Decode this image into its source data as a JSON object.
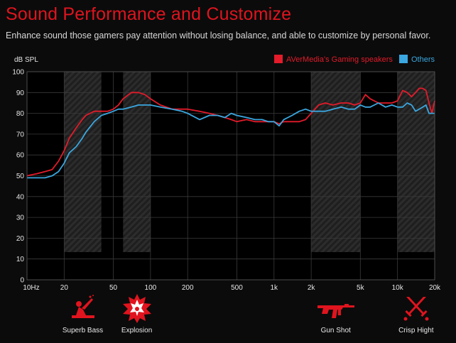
{
  "header": {
    "title": "Sound Performance and Customize",
    "subtitle": "Enhance sound those gamers pay attention without losing balance, and able to customize by personal favor."
  },
  "colors": {
    "accent": "#e0141e",
    "series_red": "#e31b2a",
    "series_blue": "#3aa7e0",
    "background": "#0b0b0b",
    "plot_background": "#000000"
  },
  "categories": [
    {
      "label": "Superb Bass",
      "icon": "soldier-mortar-icon",
      "range_hz": [
        20,
        40
      ]
    },
    {
      "label": "Explosion",
      "icon": "explosion-icon",
      "range_hz": [
        60,
        100
      ]
    },
    {
      "label": "Gun Shot",
      "icon": "rifle-icon",
      "range_hz": [
        2000,
        5000
      ]
    },
    {
      "label": "Crisp Hight",
      "icon": "crossed-swords-icon",
      "range_hz": [
        10000,
        20000
      ]
    }
  ],
  "chart_data": {
    "type": "line",
    "title": "",
    "xlabel": "",
    "ylabel": "dB SPL",
    "x_scale": "log",
    "xlim": [
      10,
      20000
    ],
    "ylim": [
      0,
      100
    ],
    "x_ticks": [
      10,
      20,
      50,
      100,
      200,
      500,
      1000,
      2000,
      5000,
      10000,
      20000
    ],
    "x_tick_labels": [
      "10Hz",
      "20",
      "50",
      "100",
      "200",
      "500",
      "1k",
      "2k",
      "5k",
      "10k",
      "20k"
    ],
    "y_ticks": [
      0,
      10,
      20,
      30,
      40,
      50,
      60,
      70,
      80,
      90,
      100
    ],
    "grid": true,
    "legend_position": "top-right",
    "series": [
      {
        "name": "AVerMedia's Gaming speakers",
        "color": "#e31b2a",
        "x": [
          10,
          12,
          14,
          16,
          18,
          20,
          22,
          25,
          28,
          30,
          35,
          40,
          45,
          50,
          55,
          60,
          70,
          80,
          90,
          100,
          120,
          150,
          180,
          200,
          250,
          300,
          350,
          400,
          450,
          500,
          600,
          700,
          800,
          900,
          1000,
          1100,
          1200,
          1400,
          1600,
          1800,
          2000,
          2300,
          2600,
          3000,
          3500,
          4000,
          4500,
          5000,
          5500,
          6000,
          7000,
          8000,
          9000,
          10000,
          11000,
          12000,
          13000,
          14000,
          15000,
          16000,
          17000,
          18000,
          19000,
          20000
        ],
        "y": [
          50,
          51,
          52,
          53,
          57,
          62,
          68,
          73,
          77,
          79,
          81,
          81,
          81,
          82,
          84,
          87,
          90,
          90,
          89,
          87,
          84,
          82,
          82,
          82,
          81,
          80,
          79,
          78,
          77,
          76,
          77,
          76,
          76,
          76,
          76,
          75,
          76,
          76,
          76,
          77,
          80,
          84,
          85,
          84,
          85,
          85,
          84,
          85,
          89,
          87,
          85,
          85,
          85,
          86,
          91,
          90,
          88,
          90,
          92,
          92,
          91,
          85,
          80,
          86
        ]
      },
      {
        "name": "Others",
        "color": "#3aa7e0",
        "x": [
          10,
          12,
          14,
          16,
          18,
          20,
          22,
          25,
          28,
          30,
          35,
          40,
          45,
          50,
          55,
          60,
          70,
          80,
          90,
          100,
          120,
          150,
          180,
          200,
          250,
          300,
          350,
          400,
          450,
          500,
          600,
          700,
          800,
          900,
          1000,
          1100,
          1200,
          1400,
          1600,
          1800,
          2000,
          2300,
          2600,
          3000,
          3500,
          4000,
          4500,
          5000,
          5500,
          6000,
          7000,
          8000,
          9000,
          10000,
          11000,
          12000,
          13000,
          14000,
          15000,
          16000,
          17000,
          18000,
          19000,
          20000
        ],
        "y": [
          49,
          49,
          49,
          50,
          52,
          56,
          61,
          64,
          68,
          71,
          76,
          79,
          80,
          81,
          82,
          82,
          83,
          84,
          84,
          84,
          83,
          82,
          81,
          80,
          77,
          79,
          79,
          78,
          80,
          79,
          78,
          77,
          77,
          76,
          76,
          74,
          77,
          79,
          81,
          82,
          81,
          81,
          81,
          82,
          83,
          82,
          82,
          84,
          83,
          83,
          85,
          83,
          84,
          83,
          83,
          85,
          84,
          81,
          82,
          83,
          84,
          80,
          80,
          80
        ]
      }
    ]
  }
}
